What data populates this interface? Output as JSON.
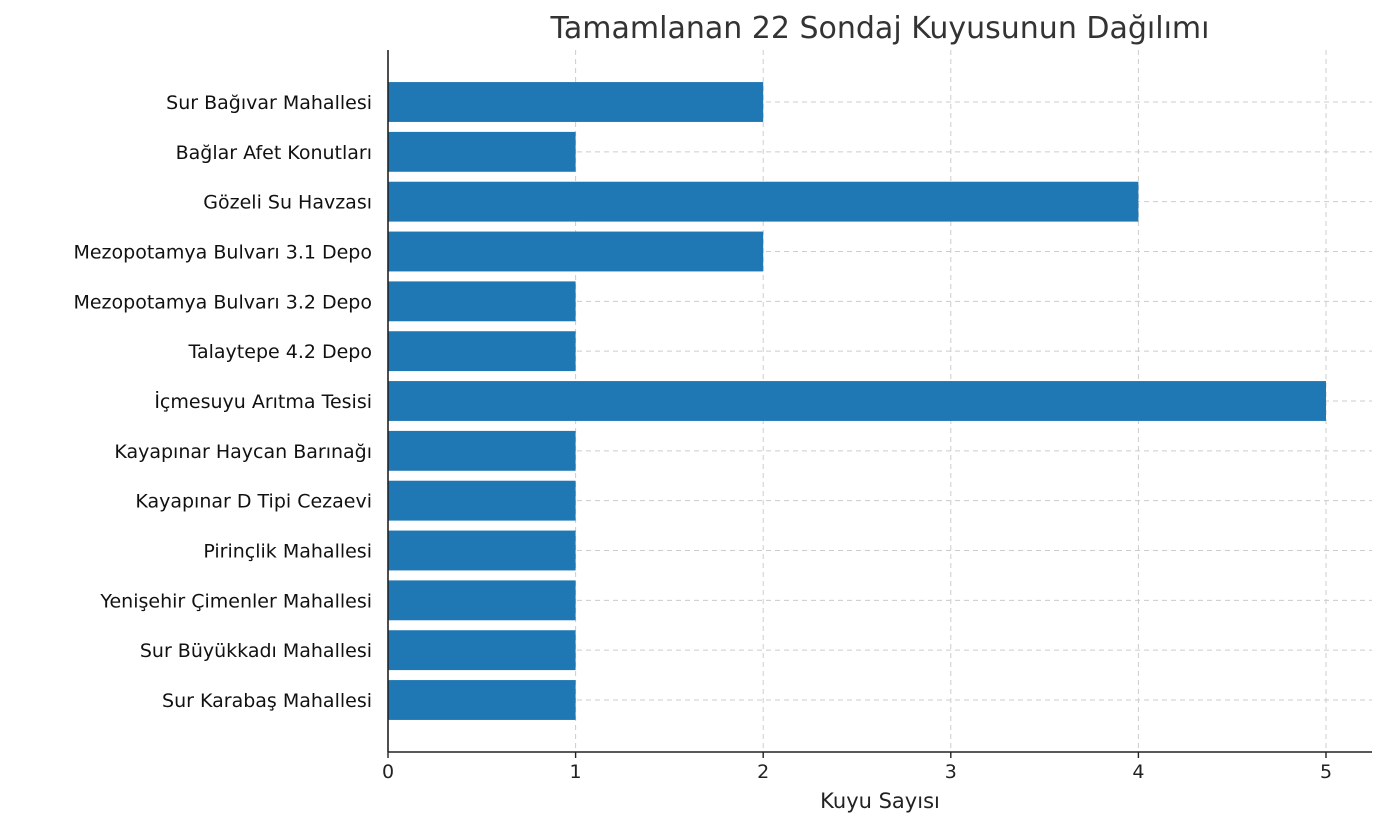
{
  "chart_data": {
    "type": "bar",
    "orientation": "horizontal",
    "title": "Tamamlanan 22 Sondaj Kuyusunun Dağılımı",
    "xlabel": "Kuyu Sayısı",
    "ylabel": "",
    "xlim": [
      0,
      5.25
    ],
    "xticks": [
      0,
      1,
      2,
      3,
      4,
      5
    ],
    "grid": true,
    "categories": [
      "Sur Bağıvar Mahallesi",
      "Bağlar Afet Konutları",
      "Gözeli Su Havzası",
      "Mezopotamya Bulvarı 3.1 Depo",
      "Mezopotamya Bulvarı 3.2 Depo",
      "Talaytepe 4.2 Depo",
      "İçmesuyu Arıtma Tesisi",
      "Kayapınar Haycan Barınağı",
      "Kayapınar D Tipi Cezaevi",
      "Pirinçlik Mahallesi",
      "Yenişehir Çimenler Mahallesi",
      "Sur Büyükkadı Mahallesi",
      "Sur Karabaş Mahallesi"
    ],
    "values": [
      2,
      1,
      4,
      2,
      1,
      1,
      5,
      1,
      1,
      1,
      1,
      1,
      1
    ],
    "bar_color": "#1f77b4"
  }
}
